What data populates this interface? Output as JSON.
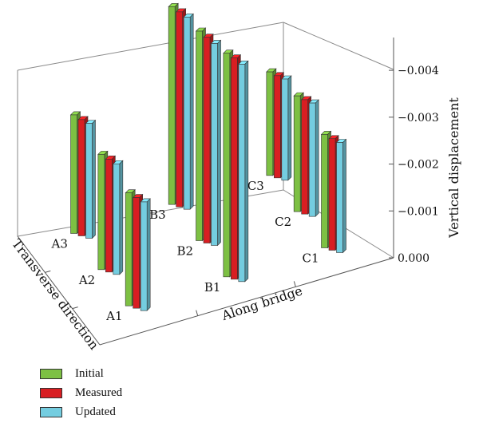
{
  "chart_data": {
    "type": "bar3d",
    "title": "",
    "xlabel": "Along bridge",
    "ylabel": "Transverse direction",
    "zlabel": "Vertical displacement",
    "zticks": [
      "0.000",
      "−0.001",
      "−0.002",
      "−0.003",
      "−0.004"
    ],
    "zlim": [
      0,
      -0.0047
    ],
    "points": [
      {
        "label": "A1",
        "values": [
          -0.00241,
          -0.00236,
          -0.00232
        ]
      },
      {
        "label": "A2",
        "values": [
          -0.00246,
          -0.00241,
          -0.00236
        ]
      },
      {
        "label": "A3",
        "values": [
          -0.00253,
          -0.00248,
          -0.00245
        ]
      },
      {
        "label": "B1",
        "values": [
          -0.00477,
          -0.00472,
          -0.00464
        ]
      },
      {
        "label": "B2",
        "values": [
          -0.00447,
          -0.00439,
          -0.00431
        ]
      },
      {
        "label": "B3",
        "values": [
          -0.00422,
          -0.00416,
          -0.0041
        ]
      },
      {
        "label": "C1",
        "values": [
          -0.00242,
          -0.00238,
          -0.00235
        ]
      },
      {
        "label": "C2",
        "values": [
          -0.00247,
          -0.00244,
          -0.00242
        ]
      },
      {
        "label": "C3",
        "values": [
          -0.00221,
          -0.00218,
          -0.00216
        ]
      }
    ],
    "series": [
      {
        "name": "Initial",
        "color": "#7dc043"
      },
      {
        "name": "Measured",
        "color": "#d81e22"
      },
      {
        "name": "Updated",
        "color": "#74cde0"
      }
    ],
    "legend_position": "bottom-left",
    "grid": false
  }
}
